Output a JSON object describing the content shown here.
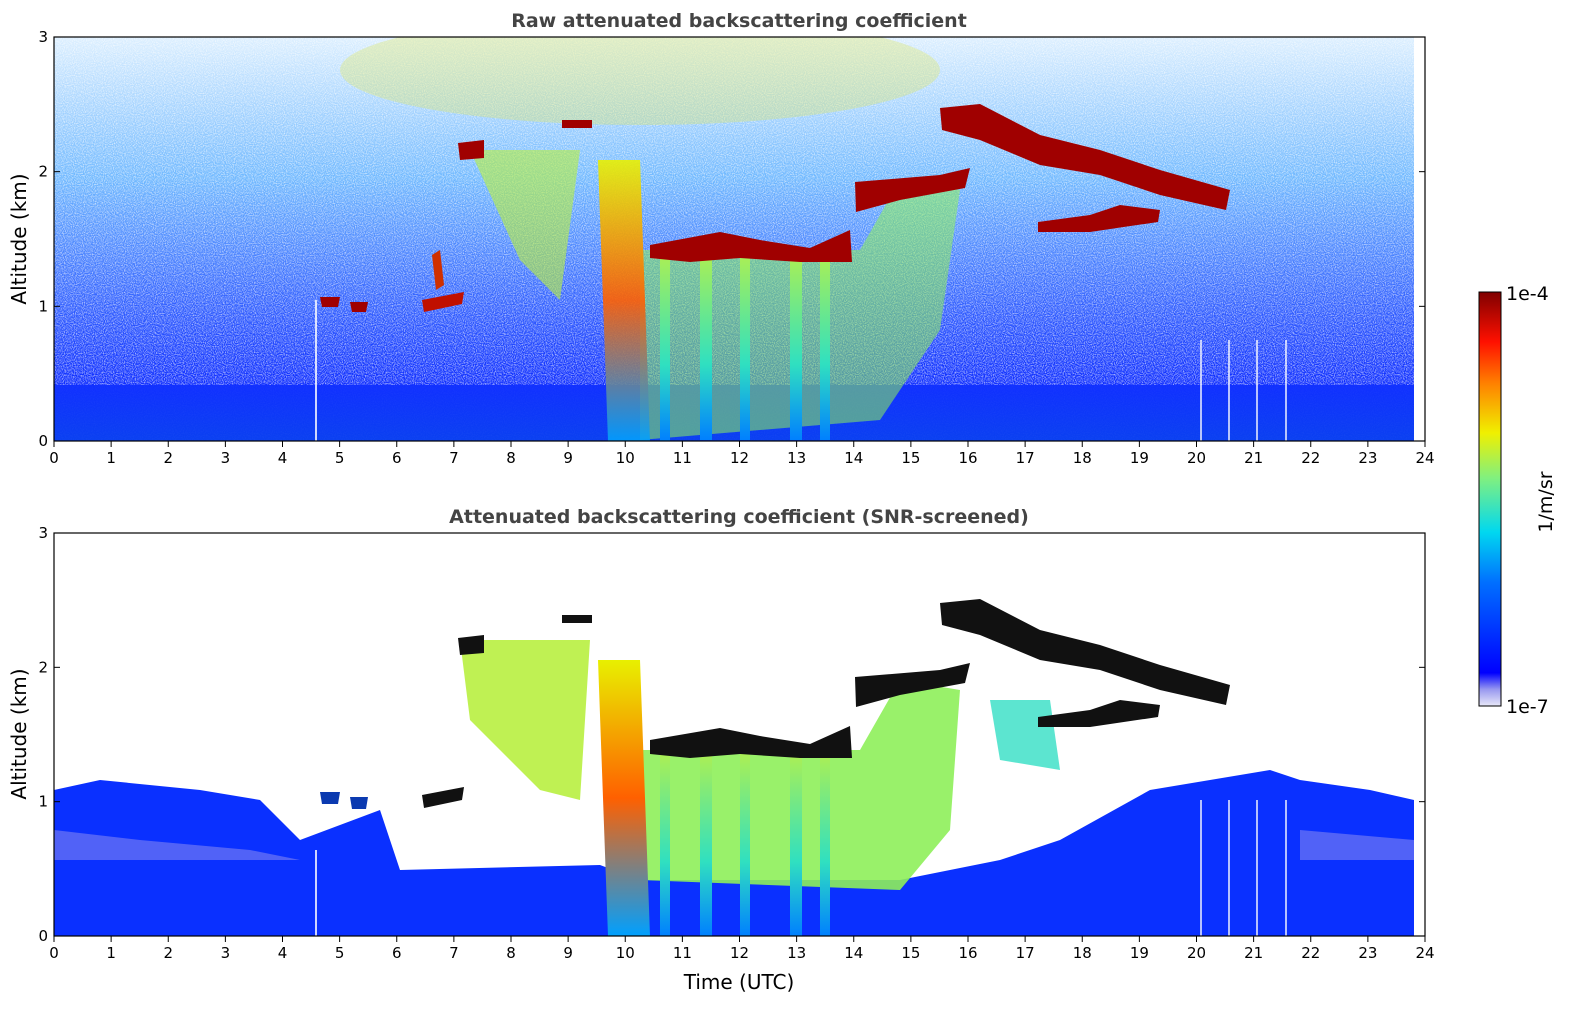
{
  "chart_data": [
    {
      "type": "heatmap",
      "title": "Raw attenuated backscattering coefficient",
      "xlabel": "",
      "ylabel": "Altitude (km)",
      "xlim": [
        0,
        24
      ],
      "ylim": [
        0,
        3
      ],
      "x_ticks": [
        "0",
        "1",
        "2",
        "3",
        "4",
        "5",
        "6",
        "7",
        "8",
        "9",
        "10",
        "11",
        "12",
        "13",
        "14",
        "15",
        "16",
        "17",
        "18",
        "19",
        "20",
        "21",
        "22",
        "23",
        "24"
      ],
      "y_ticks": [
        "0",
        "1",
        "2",
        "3"
      ],
      "features": {
        "boundary_layer_top_km": 0.35,
        "cloud_layers": [
          {
            "t_start": 4.8,
            "t_end": 5.4,
            "alt_km": 1.02
          },
          {
            "t_start": 6.5,
            "t_end": 7.2,
            "alt_km": 1.05
          },
          {
            "t_start": 7.0,
            "t_end": 7.6,
            "alt_km": 2.17
          },
          {
            "t_start": 8.9,
            "t_end": 9.4,
            "alt_km": 2.35
          },
          {
            "t_start": 10.4,
            "t_end": 14.1,
            "alt_km": 1.42
          },
          {
            "t_start": 14.1,
            "t_end": 17.0,
            "alt_km": 1.85
          },
          {
            "t_start": 15.8,
            "t_end": 20.7,
            "alt_km": 2.3
          },
          {
            "t_start": 17.0,
            "t_end": 19.3,
            "alt_km": 1.6
          }
        ],
        "precipitation_shafts_t": [
          9.7,
          10.1,
          10.6,
          11.4,
          12.1,
          12.9,
          13.6
        ]
      }
    },
    {
      "type": "heatmap",
      "title": "Attenuated backscattering coefficient (SNR-screened)",
      "xlabel": "Time (UTC)",
      "ylabel": "Altitude (km)",
      "xlim": [
        0,
        24
      ],
      "ylim": [
        0,
        3
      ],
      "x_ticks": [
        "0",
        "1",
        "2",
        "3",
        "4",
        "5",
        "6",
        "7",
        "8",
        "9",
        "10",
        "11",
        "12",
        "13",
        "14",
        "15",
        "16",
        "17",
        "18",
        "19",
        "20",
        "21",
        "22",
        "23",
        "24"
      ],
      "y_ticks": [
        "0",
        "1",
        "2",
        "3"
      ],
      "screened": true
    }
  ],
  "colorbar": {
    "label": "1/m/sr",
    "max_label": "1e-4",
    "min_label": "1e-7",
    "colormap": "jet-like",
    "colors": [
      "#e8e8f8",
      "#0000ff",
      "#00a0ff",
      "#00e8e0",
      "#a0f060",
      "#f0f000",
      "#ff9000",
      "#ff2000",
      "#a00000",
      "#800000"
    ]
  }
}
